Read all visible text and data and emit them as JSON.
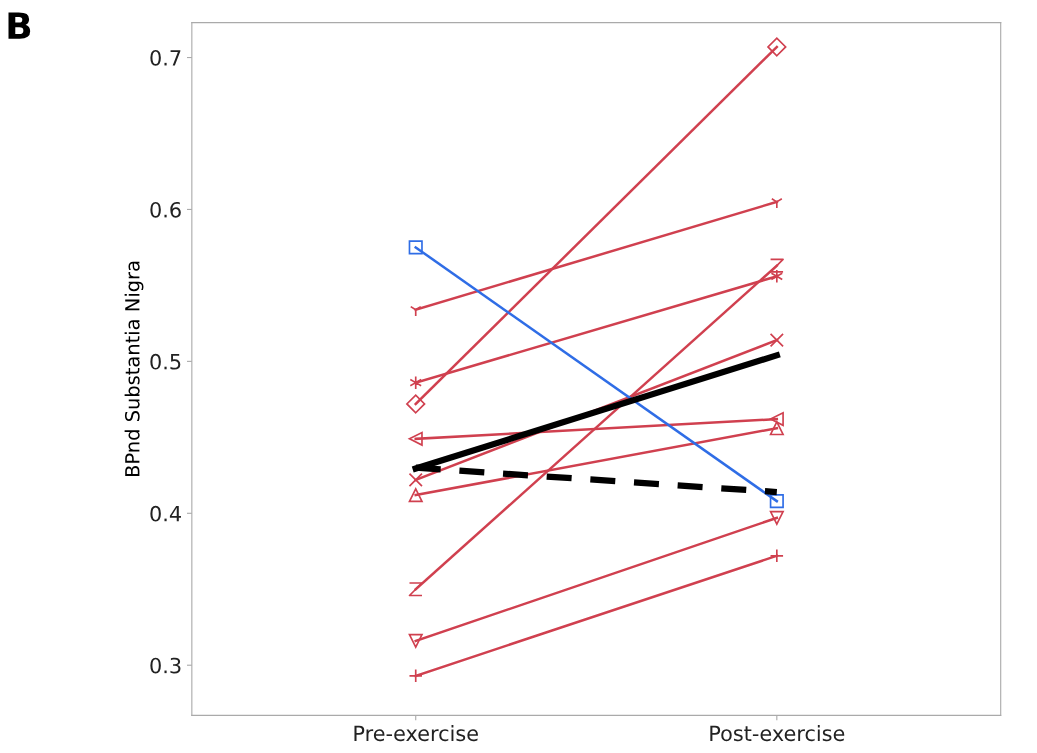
{
  "chart_data": {
    "type": "line",
    "title": "B",
    "ylabel": "BPnd Substantia Nigra",
    "categories": [
      "Pre-exercise",
      "Post-exercise"
    ],
    "series": [
      {
        "color": "#d0404f",
        "marker": "diamond",
        "values": [
          0.472,
          0.707
        ]
      },
      {
        "color": "#d0404f",
        "marker": "cross",
        "values": [
          0.534,
          0.605
        ]
      },
      {
        "color": "#d0404f",
        "marker": "cross",
        "values": [
          0.486,
          0.556
        ]
      },
      {
        "color": "#d0404f",
        "marker": "cross",
        "values": [
          0.422,
          0.514
        ]
      },
      {
        "color": "#d0404f",
        "marker": "triangle",
        "values": [
          0.449,
          0.462
        ]
      },
      {
        "color": "#d0404f",
        "marker": "triangle",
        "values": [
          0.412,
          0.456
        ]
      },
      {
        "color": "#d0404f",
        "marker": "cross",
        "values": [
          0.35,
          0.563
        ]
      },
      {
        "color": "#d0404f",
        "marker": "triangle",
        "values": [
          0.316,
          0.397
        ]
      },
      {
        "color": "#d0404f",
        "marker": "cross",
        "values": [
          0.293,
          0.372
        ]
      },
      {
        "color": "#2f6de6",
        "marker": "square",
        "values": [
          0.575,
          0.408
        ]
      },
      {
        "color": "#000000",
        "marker": "none",
        "line_style": "solid",
        "values": [
          0.4295,
          0.504
        ]
      },
      {
        "color": "#000000",
        "marker": "none",
        "line_style": "dashed",
        "values": [
          0.43,
          0.414
        ]
      }
    ],
    "ylim": [
      0.267,
      0.723
    ],
    "yticks": [
      0.3,
      0.4,
      0.5,
      0.6,
      0.7
    ],
    "grid": false,
    "legend": false
  }
}
